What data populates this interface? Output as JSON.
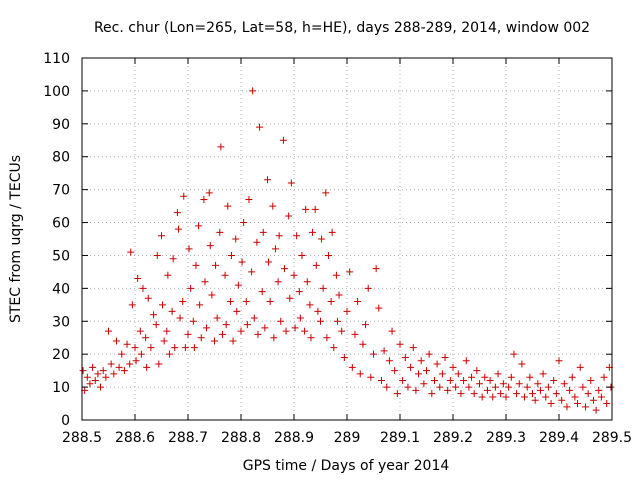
{
  "chart_data": {
    "type": "scatter",
    "title": "Rec. chur (Lon=265, Lat=58, h=HE), days 288-289, 2014, window 002",
    "xlabel": "GPS time / Days of year 2014",
    "ylabel": "STEC from uqrg / TECUs",
    "xlim": [
      288.5,
      289.5
    ],
    "ylim": [
      0,
      110
    ],
    "x_ticks": [
      288.5,
      288.6,
      288.7,
      288.8,
      288.9,
      289.0,
      289.1,
      289.2,
      289.3,
      289.4,
      289.5
    ],
    "x_tick_labels": [
      "288.5",
      "288.6",
      "288.7",
      "288.8",
      "288.9",
      "289",
      "289.1",
      "289.2",
      "289.3",
      "289.4",
      "289.5"
    ],
    "y_ticks": [
      0,
      10,
      20,
      30,
      40,
      50,
      60,
      70,
      80,
      90,
      100,
      110
    ],
    "y_tick_labels": [
      "0",
      "10",
      "20",
      "30",
      "40",
      "50",
      "60",
      "70",
      "80",
      "90",
      "100",
      "110"
    ],
    "grid": true,
    "marker": "+",
    "color": "#cc0000",
    "points": [
      [
        288.502,
        15
      ],
      [
        288.505,
        9
      ],
      [
        288.51,
        13
      ],
      [
        288.515,
        11
      ],
      [
        288.52,
        16
      ],
      [
        288.525,
        12
      ],
      [
        288.53,
        14
      ],
      [
        288.535,
        10
      ],
      [
        288.54,
        15
      ],
      [
        288.545,
        13
      ],
      [
        288.55,
        27
      ],
      [
        288.555,
        17
      ],
      [
        288.56,
        14
      ],
      [
        288.565,
        24
      ],
      [
        288.57,
        16
      ],
      [
        288.575,
        20
      ],
      [
        288.58,
        15
      ],
      [
        288.585,
        23
      ],
      [
        288.59,
        17
      ],
      [
        288.592,
        51
      ],
      [
        288.595,
        35
      ],
      [
        288.6,
        22
      ],
      [
        288.602,
        18
      ],
      [
        288.605,
        43
      ],
      [
        288.61,
        27
      ],
      [
        288.612,
        20
      ],
      [
        288.615,
        40
      ],
      [
        288.62,
        25
      ],
      [
        288.622,
        16
      ],
      [
        288.625,
        37
      ],
      [
        288.63,
        22
      ],
      [
        288.635,
        32
      ],
      [
        288.64,
        29
      ],
      [
        288.642,
        50
      ],
      [
        288.645,
        17
      ],
      [
        288.65,
        56
      ],
      [
        288.652,
        35
      ],
      [
        288.655,
        24
      ],
      [
        288.66,
        27
      ],
      [
        288.662,
        44
      ],
      [
        288.665,
        20
      ],
      [
        288.67,
        33
      ],
      [
        288.672,
        49
      ],
      [
        288.675,
        22
      ],
      [
        288.68,
        63
      ],
      [
        288.682,
        58
      ],
      [
        288.685,
        31
      ],
      [
        288.69,
        36
      ],
      [
        288.692,
        68
      ],
      [
        288.695,
        22
      ],
      [
        288.7,
        26
      ],
      [
        288.702,
        52
      ],
      [
        288.705,
        40
      ],
      [
        288.71,
        30
      ],
      [
        288.712,
        22
      ],
      [
        288.715,
        47
      ],
      [
        288.72,
        59
      ],
      [
        288.722,
        35
      ],
      [
        288.725,
        25
      ],
      [
        288.73,
        67
      ],
      [
        288.732,
        42
      ],
      [
        288.735,
        28
      ],
      [
        288.74,
        69
      ],
      [
        288.742,
        53
      ],
      [
        288.745,
        38
      ],
      [
        288.75,
        24
      ],
      [
        288.752,
        47
      ],
      [
        288.755,
        31
      ],
      [
        288.76,
        57
      ],
      [
        288.762,
        83
      ],
      [
        288.765,
        26
      ],
      [
        288.77,
        44
      ],
      [
        288.772,
        29
      ],
      [
        288.775,
        65
      ],
      [
        288.78,
        36
      ],
      [
        288.782,
        50
      ],
      [
        288.785,
        24
      ],
      [
        288.79,
        55
      ],
      [
        288.792,
        33
      ],
      [
        288.795,
        41
      ],
      [
        288.8,
        27
      ],
      [
        288.802,
        48
      ],
      [
        288.805,
        60
      ],
      [
        288.81,
        36
      ],
      [
        288.812,
        29
      ],
      [
        288.815,
        67
      ],
      [
        288.82,
        45
      ],
      [
        288.822,
        100
      ],
      [
        288.825,
        31
      ],
      [
        288.83,
        54
      ],
      [
        288.832,
        26
      ],
      [
        288.835,
        89
      ],
      [
        288.84,
        39
      ],
      [
        288.842,
        57
      ],
      [
        288.845,
        28
      ],
      [
        288.85,
        73
      ],
      [
        288.852,
        48
      ],
      [
        288.855,
        36
      ],
      [
        288.86,
        65
      ],
      [
        288.862,
        25
      ],
      [
        288.865,
        52
      ],
      [
        288.87,
        42
      ],
      [
        288.872,
        56
      ],
      [
        288.875,
        30
      ],
      [
        288.88,
        85
      ],
      [
        288.882,
        46
      ],
      [
        288.885,
        27
      ],
      [
        288.89,
        62
      ],
      [
        288.892,
        37
      ],
      [
        288.895,
        72
      ],
      [
        288.9,
        44
      ],
      [
        288.902,
        28
      ],
      [
        288.905,
        56
      ],
      [
        288.91,
        39
      ],
      [
        288.912,
        31
      ],
      [
        288.915,
        50
      ],
      [
        288.92,
        27
      ],
      [
        288.922,
        64
      ],
      [
        288.925,
        42
      ],
      [
        288.93,
        35
      ],
      [
        288.932,
        25
      ],
      [
        288.935,
        57
      ],
      [
        288.94,
        64
      ],
      [
        288.942,
        47
      ],
      [
        288.945,
        33
      ],
      [
        288.95,
        30
      ],
      [
        288.952,
        55
      ],
      [
        288.955,
        40
      ],
      [
        288.96,
        69
      ],
      [
        288.962,
        25
      ],
      [
        288.965,
        50
      ],
      [
        288.97,
        36
      ],
      [
        288.972,
        57
      ],
      [
        288.975,
        22
      ],
      [
        288.98,
        44
      ],
      [
        288.982,
        30
      ],
      [
        288.985,
        38
      ],
      [
        288.99,
        27
      ],
      [
        288.995,
        19
      ],
      [
        289.0,
        33
      ],
      [
        289.005,
        45
      ],
      [
        289.01,
        16
      ],
      [
        289.015,
        26
      ],
      [
        289.02,
        36
      ],
      [
        289.025,
        14
      ],
      [
        289.03,
        23
      ],
      [
        289.035,
        29
      ],
      [
        289.04,
        40
      ],
      [
        289.045,
        13
      ],
      [
        289.05,
        20
      ],
      [
        289.055,
        46
      ],
      [
        289.06,
        34
      ],
      [
        289.065,
        12
      ],
      [
        289.07,
        21
      ],
      [
        289.075,
        10
      ],
      [
        289.08,
        18
      ],
      [
        289.085,
        27
      ],
      [
        289.09,
        15
      ],
      [
        289.095,
        8
      ],
      [
        289.1,
        23
      ],
      [
        289.105,
        12
      ],
      [
        289.11,
        19
      ],
      [
        289.115,
        10
      ],
      [
        289.12,
        16
      ],
      [
        289.125,
        22
      ],
      [
        289.13,
        9
      ],
      [
        289.135,
        14
      ],
      [
        289.14,
        18
      ],
      [
        289.145,
        11
      ],
      [
        289.15,
        15
      ],
      [
        289.155,
        20
      ],
      [
        289.16,
        8
      ],
      [
        289.165,
        12
      ],
      [
        289.17,
        17
      ],
      [
        289.175,
        10
      ],
      [
        289.18,
        14
      ],
      [
        289.185,
        19
      ],
      [
        289.19,
        9
      ],
      [
        289.195,
        12
      ],
      [
        289.2,
        16
      ],
      [
        289.205,
        10
      ],
      [
        289.21,
        14
      ],
      [
        289.215,
        8
      ],
      [
        289.22,
        12
      ],
      [
        289.225,
        18
      ],
      [
        289.23,
        10
      ],
      [
        289.235,
        13
      ],
      [
        289.24,
        8
      ],
      [
        289.245,
        15
      ],
      [
        289.25,
        11
      ],
      [
        289.255,
        7
      ],
      [
        289.26,
        13
      ],
      [
        289.265,
        9
      ],
      [
        289.27,
        12
      ],
      [
        289.275,
        7
      ],
      [
        289.28,
        10
      ],
      [
        289.285,
        14
      ],
      [
        289.29,
        8
      ],
      [
        289.295,
        11
      ],
      [
        289.3,
        7
      ],
      [
        289.305,
        10
      ],
      [
        289.31,
        13
      ],
      [
        289.315,
        20
      ],
      [
        289.32,
        8
      ],
      [
        289.325,
        11
      ],
      [
        289.33,
        17
      ],
      [
        289.335,
        7
      ],
      [
        289.34,
        10
      ],
      [
        289.345,
        13
      ],
      [
        289.35,
        8
      ],
      [
        289.355,
        6
      ],
      [
        289.36,
        11
      ],
      [
        289.365,
        9
      ],
      [
        289.37,
        14
      ],
      [
        289.375,
        7
      ],
      [
        289.38,
        10
      ],
      [
        289.385,
        5
      ],
      [
        289.39,
        12
      ],
      [
        289.395,
        8
      ],
      [
        289.4,
        18
      ],
      [
        289.405,
        6
      ],
      [
        289.41,
        11
      ],
      [
        289.415,
        4
      ],
      [
        289.42,
        9
      ],
      [
        289.425,
        13
      ],
      [
        289.43,
        7
      ],
      [
        289.435,
        5
      ],
      [
        289.44,
        16
      ],
      [
        289.445,
        10
      ],
      [
        289.45,
        4
      ],
      [
        289.455,
        8
      ],
      [
        289.46,
        12
      ],
      [
        289.465,
        6
      ],
      [
        289.47,
        3
      ],
      [
        289.475,
        9
      ],
      [
        289.48,
        7
      ],
      [
        289.485,
        13
      ],
      [
        289.49,
        5
      ],
      [
        289.495,
        16
      ],
      [
        289.498,
        10
      ]
    ]
  }
}
